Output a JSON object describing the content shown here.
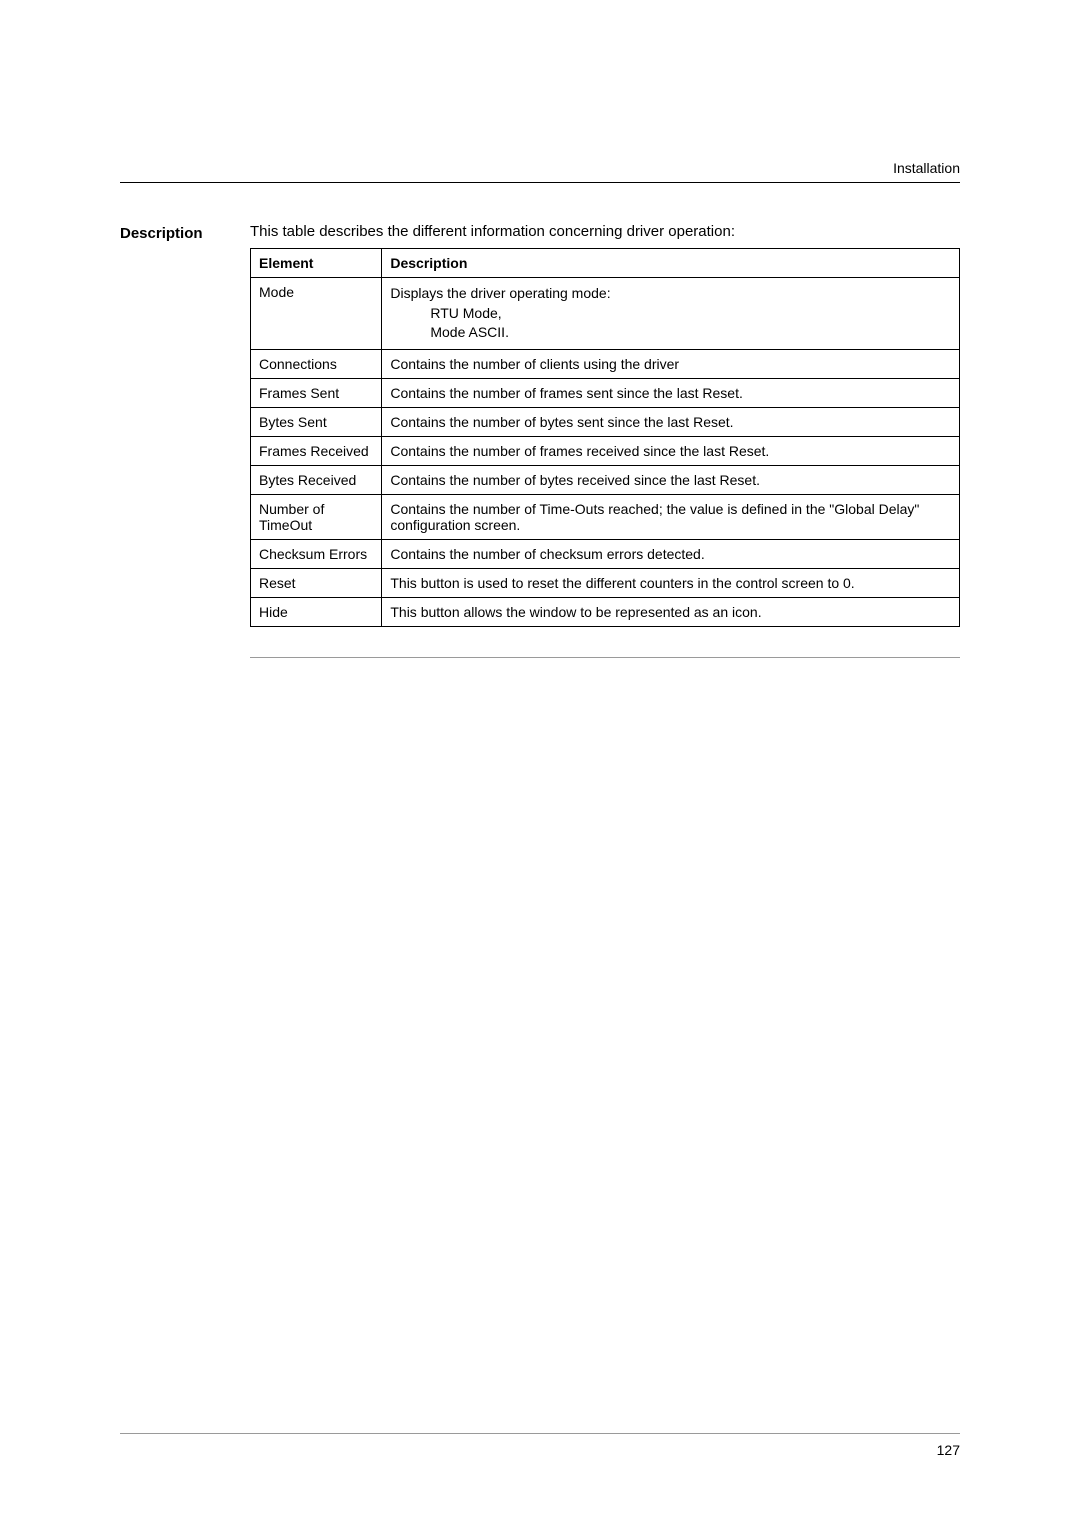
{
  "header": {
    "section": "Installation"
  },
  "sideLabel": "Description",
  "intro": "This table describes the different information concerning driver operation:",
  "table": {
    "headers": [
      "Element",
      "Description"
    ],
    "rows": [
      {
        "element": "Mode",
        "description_main": "Displays the driver operating mode:",
        "description_sub1": "RTU Mode,",
        "description_sub2": "Mode ASCII."
      },
      {
        "element": "Connections",
        "description": "Contains the number of clients using the driver"
      },
      {
        "element": "Frames Sent",
        "description": "Contains the number of frames sent since the last Reset."
      },
      {
        "element": "Bytes Sent",
        "description": "Contains the number of bytes sent since the last Reset."
      },
      {
        "element": "Frames Received",
        "description": "Contains the number of frames received since the last Reset."
      },
      {
        "element": "Bytes Received",
        "description": "Contains the number of bytes received since the last Reset."
      },
      {
        "element": "Number of TimeOut",
        "description": "Contains the number of Time-Outs reached; the value is defined in the \"Global Delay\"  configuration screen."
      },
      {
        "element": "Checksum Errors",
        "description": "Contains the number of checksum errors detected."
      },
      {
        "element": "Reset",
        "description": "This button is used to reset the different counters in the control screen to 0."
      },
      {
        "element": "Hide",
        "description": "This button allows the window to be represented as an icon."
      }
    ]
  },
  "footer": {
    "pageNumber": "127"
  }
}
